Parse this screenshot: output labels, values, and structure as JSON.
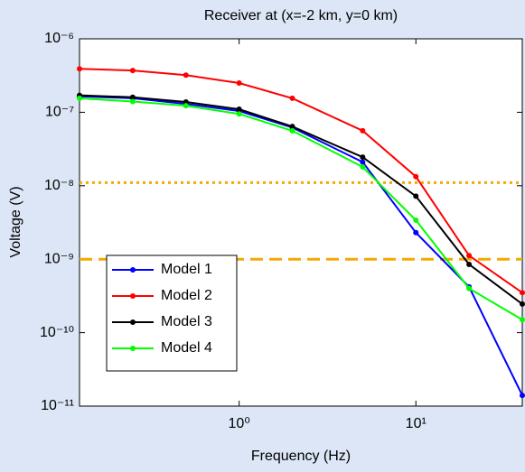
{
  "chart_data": {
    "type": "line",
    "title": "Receiver at (x=-2 km, y=0 km)",
    "xlabel": "Frequency (Hz)",
    "ylabel": "Voltage (V)",
    "x": [
      0.125,
      0.25,
      0.5,
      1,
      2,
      5,
      10,
      20,
      40
    ],
    "xscale": "log",
    "yscale": "log",
    "xlim": [
      0.125,
      40
    ],
    "ylim": [
      1e-11,
      1e-06
    ],
    "xticks": [
      {
        "value": 1,
        "label": "10⁰"
      },
      {
        "value": 10,
        "label": "10¹"
      }
    ],
    "yticks": [
      {
        "value": 1e-11,
        "label": "10⁻¹¹"
      },
      {
        "value": 1e-10,
        "label": "10⁻¹⁰"
      },
      {
        "value": 1e-09,
        "label": "10⁻⁹"
      },
      {
        "value": 1e-08,
        "label": "10⁻⁸"
      },
      {
        "value": 1e-07,
        "label": "10⁻⁷"
      },
      {
        "value": 1e-06,
        "label": "10⁻⁶"
      }
    ],
    "grid": false,
    "legend": "lower left",
    "series": [
      {
        "name": "Model 1",
        "color": "#0000ff",
        "values": [
          1.65e-07,
          1.55e-07,
          1.3e-07,
          1.04e-07,
          6.2e-08,
          2.1e-08,
          2.3e-09,
          4.2e-10,
          1.4e-11
        ]
      },
      {
        "name": "Model 2",
        "color": "#ff0000",
        "values": [
          3.9e-07,
          3.7e-07,
          3.2e-07,
          2.5e-07,
          1.55e-07,
          5.6e-08,
          1.33e-08,
          1.12e-09,
          3.5e-10
        ]
      },
      {
        "name": "Model 3",
        "color": "#000000",
        "values": [
          1.7e-07,
          1.6e-07,
          1.38e-07,
          1.1e-07,
          6.4e-08,
          2.45e-08,
          7.2e-09,
          8.5e-10,
          2.45e-10
        ]
      },
      {
        "name": "Model 4",
        "color": "#00ff00",
        "values": [
          1.55e-07,
          1.4e-07,
          1.23e-07,
          9.5e-08,
          5.6e-08,
          1.8e-08,
          3.4e-09,
          4e-10,
          1.5e-10
        ]
      }
    ],
    "reference_lines": [
      {
        "value": 1.1e-08,
        "style": "dotted",
        "color": "#f5a800"
      },
      {
        "value": 1e-09,
        "style": "dashed",
        "color": "#f5a800"
      }
    ]
  }
}
